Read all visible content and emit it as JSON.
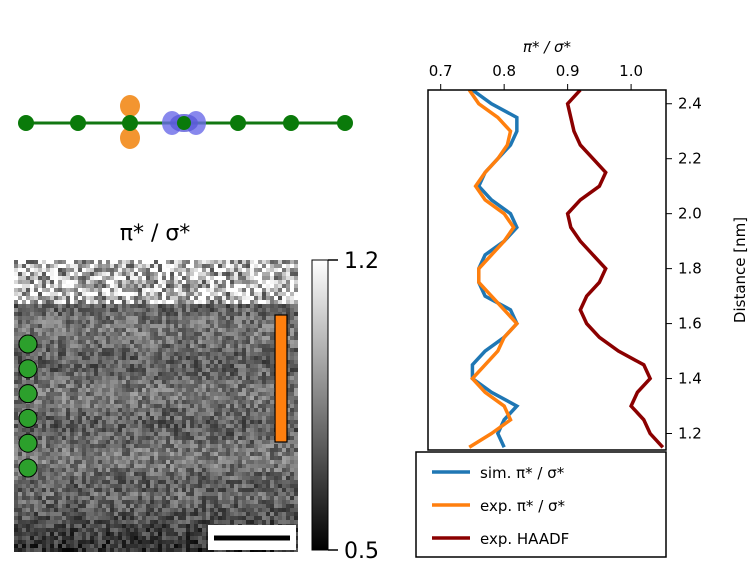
{
  "chart_data": [
    {
      "type": "image",
      "title": "π* / σ*",
      "clim": [
        0.5,
        1.2
      ],
      "cticks": [
        0.5,
        1.2
      ]
    },
    {
      "type": "line",
      "xlabel": "π* / σ*",
      "ylabel": "Distance [nm]",
      "xlim": [
        0.68,
        1.055
      ],
      "xticks": [
        0.7,
        0.8,
        0.9,
        {
          "value": 1,
          "label": "1.0"
        }
      ],
      "ylim": [
        1.14,
        2.45
      ],
      "yticks": [
        1.2,
        1.4,
        1.6,
        1.8,
        {
          "value": 2,
          "label": "2.0"
        },
        2.2,
        2.4
      ],
      "y": [
        1.15,
        1.2,
        1.25,
        1.3,
        1.35,
        1.4,
        1.45,
        1.5,
        1.55,
        1.6,
        1.65,
        1.7,
        1.75,
        1.8,
        1.85,
        1.9,
        1.95,
        2.0,
        2.05,
        2.1,
        2.15,
        2.2,
        2.25,
        2.3,
        2.35,
        2.4,
        2.45
      ],
      "series": [
        {
          "name": "sim. π* / σ*",
          "color": "#1f77b4",
          "values": [
            0.8,
            0.79,
            0.8,
            0.82,
            0.78,
            0.75,
            0.75,
            0.77,
            0.8,
            0.82,
            0.81,
            0.77,
            0.76,
            0.76,
            0.77,
            0.8,
            0.82,
            0.81,
            0.78,
            0.76,
            0.77,
            0.79,
            0.81,
            0.82,
            0.82,
            0.78,
            0.75
          ]
        },
        {
          "name": "exp. π* / σ*",
          "color": "#ff7f0e",
          "values": [
            0.745,
            0.78,
            0.81,
            0.8,
            0.77,
            0.75,
            0.77,
            0.79,
            0.8,
            0.82,
            0.8,
            0.78,
            0.76,
            0.76,
            0.78,
            0.8,
            0.815,
            0.8,
            0.77,
            0.755,
            0.77,
            0.79,
            0.805,
            0.81,
            0.79,
            0.76,
            0.745
          ]
        },
        {
          "name": "exp. HAADF",
          "color": "#8b0000",
          "values": [
            1.05,
            1.03,
            1.02,
            1.0,
            1.01,
            1.03,
            1.02,
            0.98,
            0.95,
            0.93,
            0.92,
            0.93,
            0.95,
            0.96,
            0.94,
            0.92,
            0.905,
            0.9,
            0.92,
            0.95,
            0.96,
            0.94,
            0.92,
            0.91,
            0.905,
            0.9,
            0.92
          ]
        }
      ]
    }
  ]
}
